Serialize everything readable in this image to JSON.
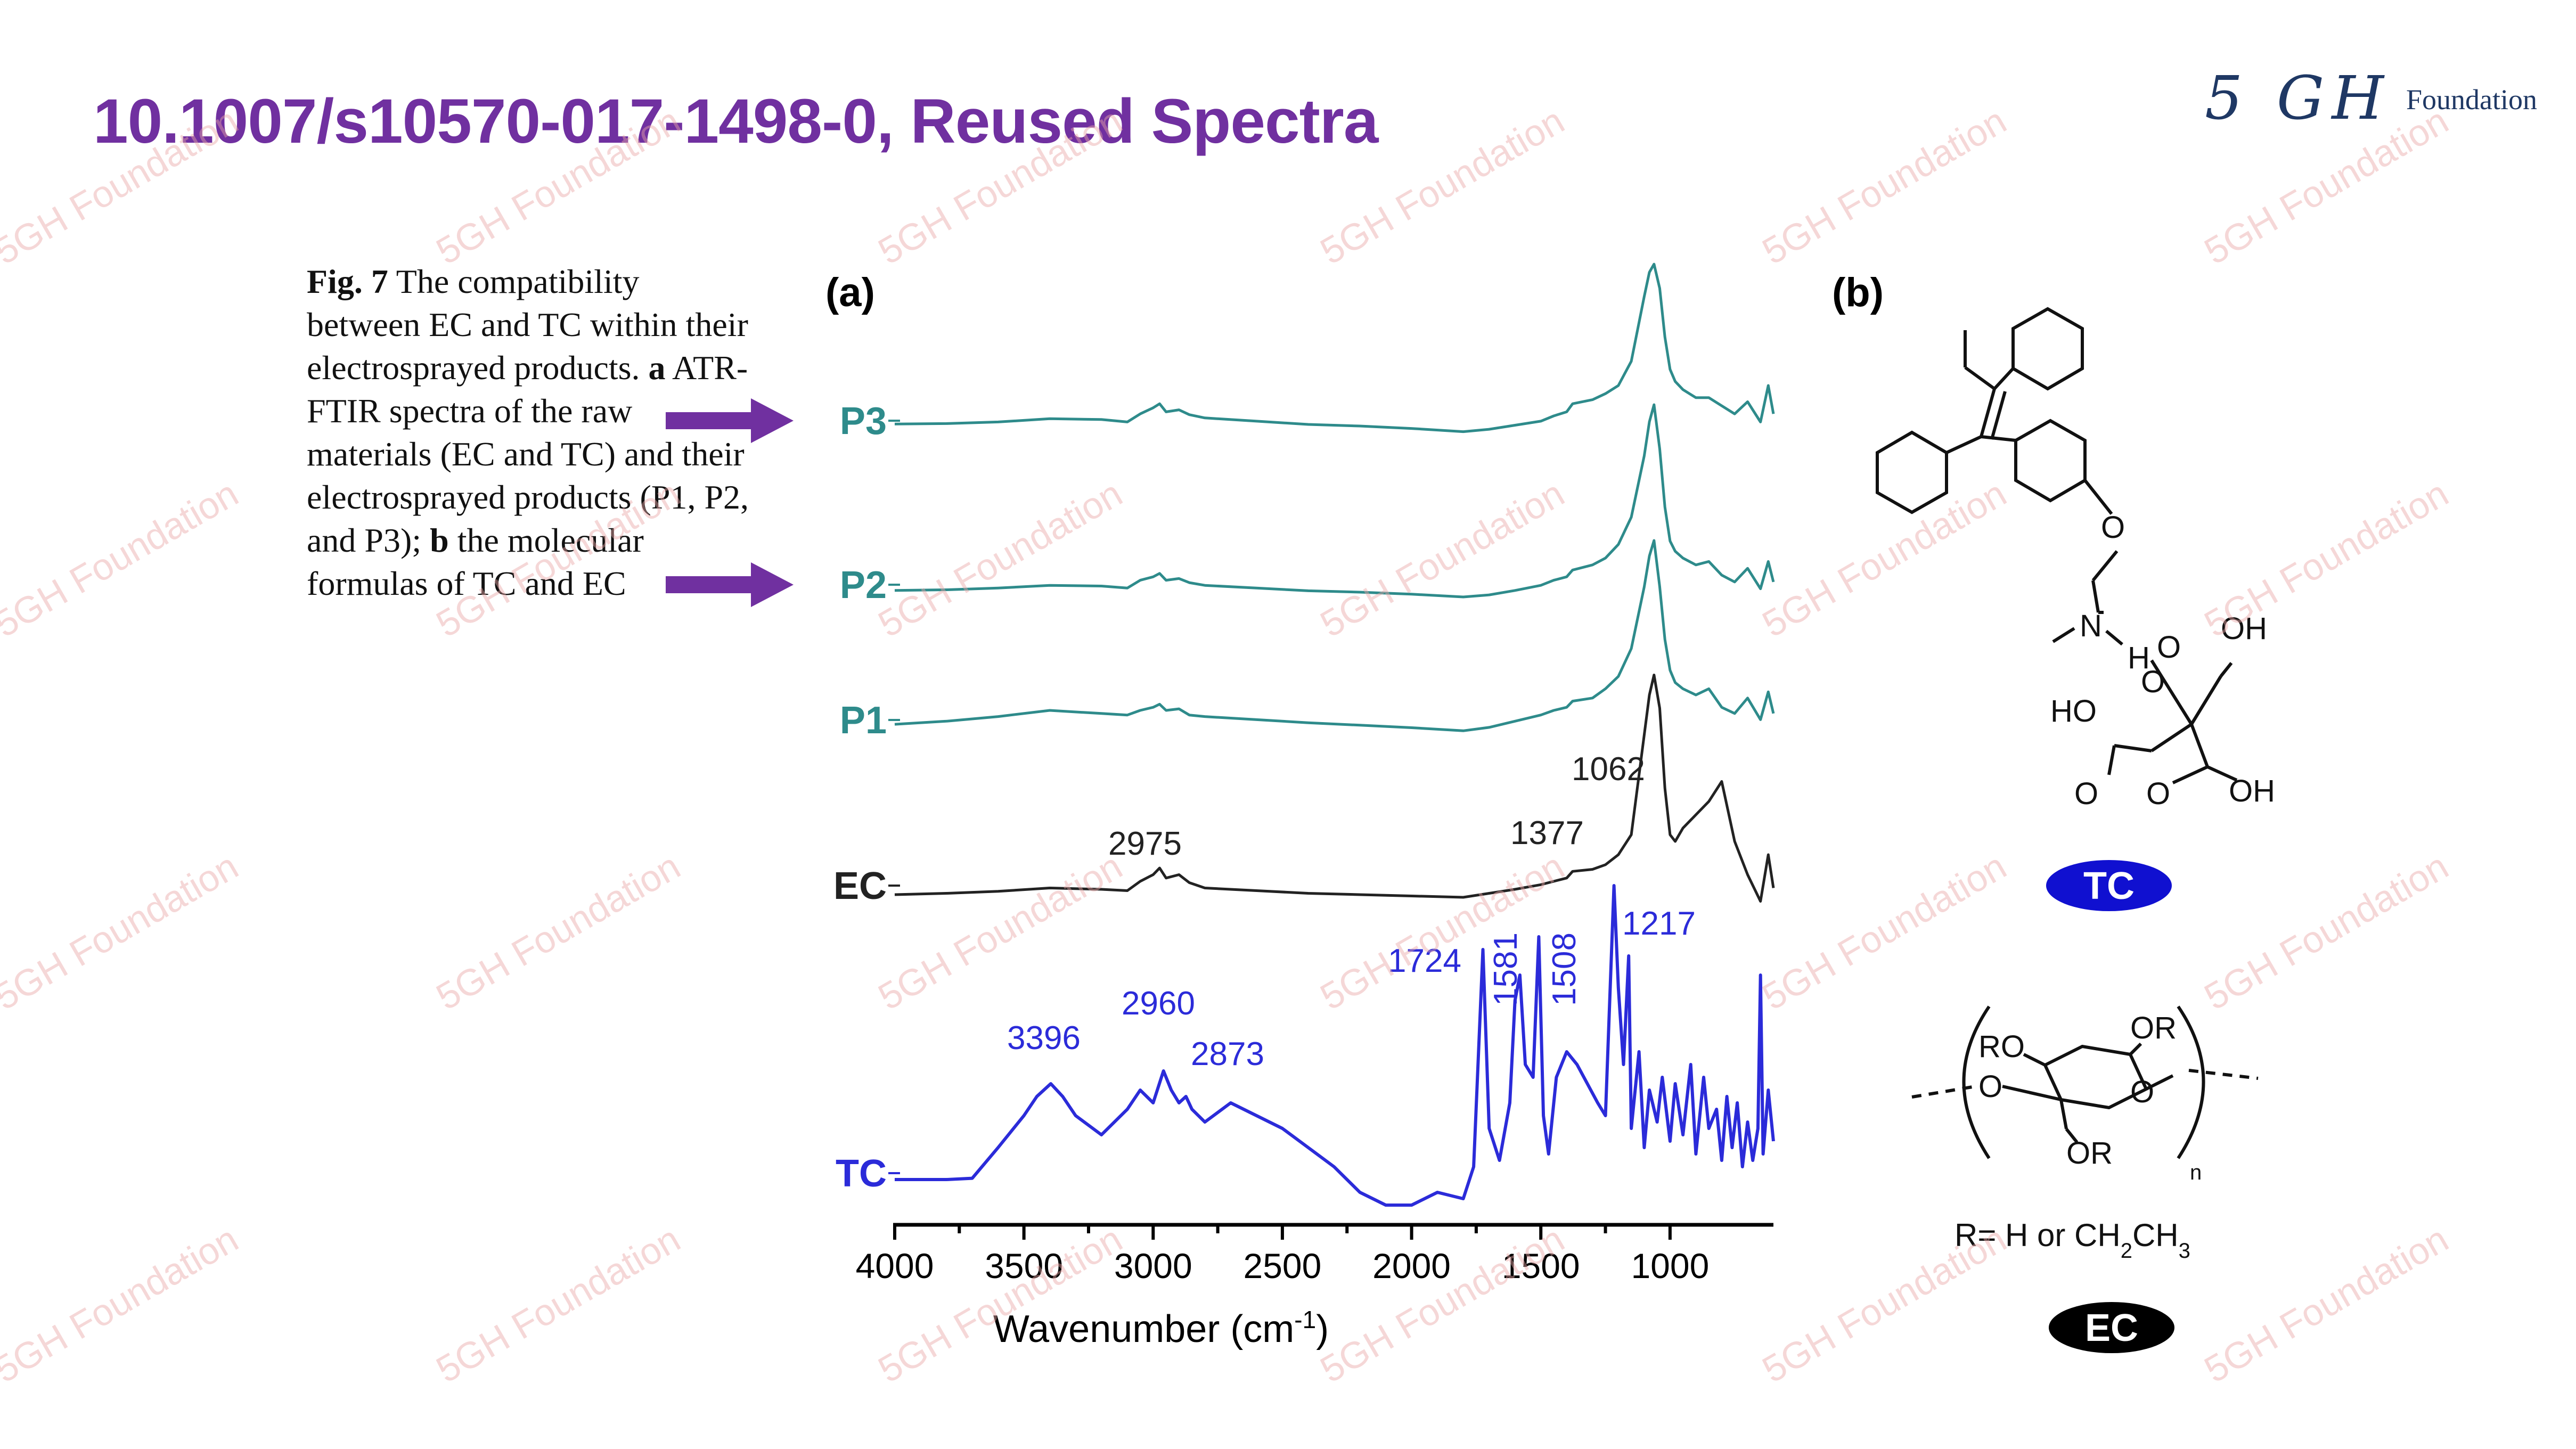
{
  "slide": {
    "title": "10.1007/s10570-017-1498-0, Reused Spectra",
    "title_color": "#7030A0",
    "arrow_color": "#7030A0",
    "logo_mark": "5 GH",
    "logo_word": "Foundation",
    "logo_color": "#1F3864",
    "watermark_text": "5GH Foundation"
  },
  "caption": {
    "fig_label": "Fig. 7",
    "text_1": "The compatibility between EC and TC within their electrosprayed products.",
    "bold_a": "a",
    "text_2": "ATR-FTIR spectra of the raw materials (EC and TC) and their electrosprayed products (P1, P2, and P3);",
    "bold_b": "b",
    "text_3": "the molecular formulas of TC and EC"
  },
  "chart_data": {
    "type": "line",
    "panel_label": "(a)",
    "xlabel": "Wavenumber (cm-1)",
    "xlabel_main": "Wavenumber (cm",
    "xlabel_sup": "-1",
    "xlabel_close": ")",
    "x_reversed": true,
    "xlim": [
      4000,
      600
    ],
    "x_ticks": [
      4000,
      3500,
      3000,
      2500,
      2000,
      1500,
      1000
    ],
    "y_axis_shown": false,
    "grid": false,
    "series": [
      {
        "name": "P3",
        "color": "#2E8B8B",
        "x": [
          4000,
          3800,
          3600,
          3400,
          3200,
          3100,
          3050,
          3000,
          2975,
          2950,
          2900,
          2860,
          2800,
          2600,
          2400,
          2200,
          2000,
          1800,
          1700,
          1600,
          1500,
          1450,
          1400,
          1377,
          1300,
          1250,
          1200,
          1150,
          1100,
          1080,
          1062,
          1040,
          1020,
          1000,
          980,
          950,
          900,
          850,
          800,
          750,
          700,
          650,
          620,
          600
        ],
        "y": [
          0.5,
          0.6,
          1.0,
          1.8,
          1.6,
          1.0,
          3.0,
          4.5,
          5.5,
          3.5,
          4.0,
          2.8,
          2.0,
          1.2,
          0.4,
          0.0,
          -0.6,
          -1.4,
          -0.8,
          0.2,
          1.2,
          2.5,
          3.5,
          5.5,
          6.5,
          8,
          10,
          16,
          32,
          38,
          40,
          34,
          22,
          14,
          11,
          9,
          7,
          7,
          5,
          3,
          6,
          1,
          10,
          3
        ]
      },
      {
        "name": "P2",
        "color": "#2E8B8B",
        "x": [
          4000,
          3800,
          3600,
          3400,
          3200,
          3100,
          3050,
          3000,
          2975,
          2950,
          2900,
          2860,
          2800,
          2600,
          2400,
          2200,
          2000,
          1800,
          1700,
          1600,
          1500,
          1450,
          1400,
          1377,
          1300,
          1250,
          1200,
          1150,
          1100,
          1080,
          1062,
          1040,
          1020,
          1000,
          980,
          950,
          900,
          850,
          800,
          750,
          700,
          650,
          620,
          600
        ],
        "y": [
          0.5,
          0.7,
          1.2,
          2.0,
          1.8,
          1.2,
          3.5,
          4.5,
          5.5,
          3.5,
          4.0,
          2.8,
          2.0,
          1.2,
          0.4,
          0.0,
          -0.6,
          -1.4,
          -0.8,
          0.5,
          2.0,
          3.5,
          4.5,
          6.5,
          8,
          10,
          14,
          22,
          40,
          50,
          55,
          42,
          25,
          15,
          12,
          10,
          8,
          9,
          5,
          3,
          7,
          1,
          9,
          3
        ]
      },
      {
        "name": "P1",
        "color": "#2E8B8B",
        "x": [
          4000,
          3800,
          3600,
          3400,
          3200,
          3100,
          3050,
          3000,
          2975,
          2950,
          2900,
          2860,
          2800,
          2600,
          2400,
          2200,
          2000,
          1800,
          1700,
          1600,
          1500,
          1450,
          1400,
          1377,
          1300,
          1250,
          1200,
          1150,
          1100,
          1080,
          1062,
          1040,
          1020,
          1000,
          980,
          950,
          900,
          850,
          800,
          750,
          700,
          650,
          620,
          600
        ],
        "y": [
          0.5,
          1.5,
          3.0,
          5.0,
          4.0,
          3.5,
          5.0,
          6.0,
          7.0,
          5.0,
          5.5,
          3.5,
          3.0,
          2.0,
          1.0,
          0.2,
          -0.6,
          -1.6,
          -0.5,
          1.5,
          3.5,
          5.0,
          6.0,
          8.0,
          9,
          12,
          16,
          25,
          45,
          55,
          60,
          45,
          28,
          18,
          14,
          12,
          10,
          12,
          6,
          4,
          9,
          2,
          11,
          4
        ]
      },
      {
        "name": "EC",
        "color": "#222222",
        "x": [
          4000,
          3800,
          3600,
          3400,
          3200,
          3100,
          3050,
          3000,
          2975,
          2950,
          2900,
          2860,
          2800,
          2600,
          2400,
          2200,
          2000,
          1800,
          1700,
          1600,
          1500,
          1450,
          1400,
          1377,
          1300,
          1250,
          1200,
          1150,
          1100,
          1080,
          1062,
          1040,
          1020,
          1000,
          980,
          950,
          900,
          850,
          800,
          750,
          700,
          650,
          620,
          600
        ],
        "y": [
          0.0,
          0.2,
          0.5,
          1.0,
          0.8,
          0.6,
          2.0,
          3.0,
          4.0,
          2.5,
          3.0,
          1.8,
          1.0,
          0.6,
          0.2,
          0.0,
          -0.2,
          -0.4,
          0.2,
          0.8,
          1.5,
          2.0,
          2.5,
          3.5,
          3.8,
          4.5,
          6,
          9,
          24,
          30,
          33,
          28,
          16,
          9,
          8,
          10,
          12,
          14,
          17,
          8,
          3,
          -1,
          6,
          1
        ]
      },
      {
        "name": "TC",
        "color": "#2B2BD9",
        "x": [
          4000,
          3900,
          3800,
          3700,
          3600,
          3500,
          3450,
          3396,
          3350,
          3300,
          3200,
          3100,
          3050,
          3000,
          2960,
          2930,
          2900,
          2873,
          2850,
          2800,
          2700,
          2600,
          2500,
          2400,
          2300,
          2200,
          2100,
          2000,
          1900,
          1800,
          1760,
          1724,
          1700,
          1660,
          1620,
          1600,
          1581,
          1560,
          1530,
          1508,
          1490,
          1470,
          1440,
          1400,
          1360,
          1320,
          1280,
          1250,
          1217,
          1200,
          1180,
          1160,
          1150,
          1120,
          1100,
          1080,
          1050,
          1030,
          1000,
          980,
          950,
          920,
          900,
          870,
          850,
          820,
          800,
          780,
          760,
          740,
          720,
          700,
          680,
          660,
          650,
          640,
          620,
          600
        ],
        "y": [
          0,
          0,
          0,
          0.2,
          5,
          10,
          13,
          15,
          13,
          10,
          7,
          11,
          14,
          12,
          17,
          14,
          12,
          13,
          11,
          9,
          12,
          10,
          8,
          5,
          2,
          -2,
          -4,
          -4,
          -2,
          -3,
          2,
          36,
          8,
          3,
          12,
          28,
          32,
          18,
          16,
          38,
          10,
          4,
          16,
          20,
          18,
          15,
          12,
          10,
          46,
          30,
          18,
          35,
          8,
          20,
          5,
          14,
          9,
          16,
          6,
          15,
          7,
          18,
          4,
          16,
          8,
          11,
          3,
          13,
          5,
          12,
          2,
          9,
          3,
          8,
          32,
          4,
          14,
          6
        ]
      }
    ],
    "series_labels": [
      {
        "series": "P3",
        "label": "P3"
      },
      {
        "series": "P2",
        "label": "P2"
      },
      {
        "series": "P1",
        "label": "P1"
      },
      {
        "series": "EC",
        "label": "EC"
      },
      {
        "series": "TC",
        "label": "TC"
      }
    ],
    "annotations": [
      {
        "series": "EC",
        "x": 2975,
        "text": "2975",
        "color": "#222222"
      },
      {
        "series": "EC",
        "x": 1377,
        "text": "1377",
        "color": "#222222"
      },
      {
        "series": "EC",
        "x": 1062,
        "text": "1062",
        "color": "#222222"
      },
      {
        "series": "TC",
        "x": 3396,
        "text": "3396",
        "color": "#2B2BD9"
      },
      {
        "series": "TC",
        "x": 2960,
        "text": "2960",
        "color": "#2B2BD9"
      },
      {
        "series": "TC",
        "x": 2873,
        "text": "2873",
        "color": "#2B2BD9"
      },
      {
        "series": "TC",
        "x": 1724,
        "text": "1724",
        "color": "#2B2BD9"
      },
      {
        "series": "TC",
        "x": 1581,
        "text": "1581",
        "color": "#2B2BD9",
        "rotated": true
      },
      {
        "series": "TC",
        "x": 1508,
        "text": "1508",
        "color": "#2B2BD9",
        "rotated": true
      },
      {
        "series": "TC",
        "x": 1217,
        "text": "1217",
        "color": "#2B2BD9"
      }
    ]
  },
  "structures": {
    "panel_label": "(b)",
    "tc_atoms": {
      "o_ether": "O",
      "n": "N",
      "h": "H",
      "ho_oh": "HO",
      "oh_top": "OH",
      "oh_bottom": "OH",
      "o_carbonyl_left": "O",
      "o_carbonyl_right": "O",
      "o_carbonyl_top": "O",
      "o_hydroxy": "O"
    },
    "tc_badge": "TC",
    "tc_badge_color": "#1010D0",
    "ec_atoms": {
      "ro": "RO",
      "or_top": "OR",
      "or_bottom": "OR",
      "o_ring": "O",
      "o_link": "O",
      "subscript_n": "n"
    },
    "ec_r_def_main": "R= H or CH",
    "ec_r_def_sub1": "2",
    "ec_r_def_mid": "CH",
    "ec_r_def_sub2": "3",
    "ec_badge": "EC",
    "ec_badge_color": "#000000"
  }
}
